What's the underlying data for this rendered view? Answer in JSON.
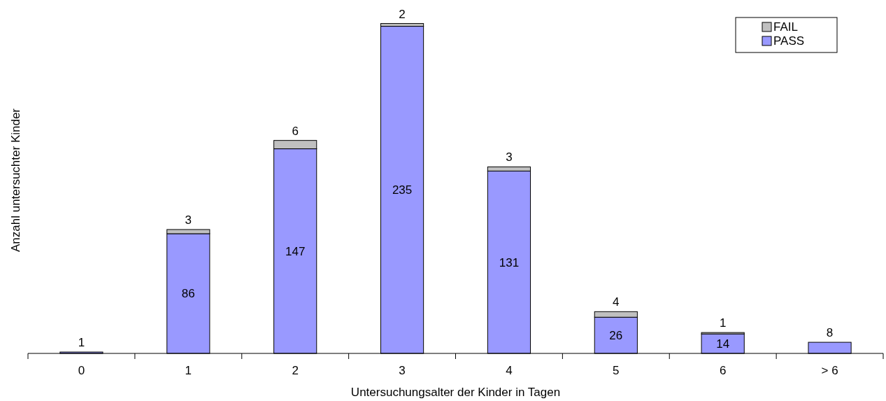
{
  "chart_data": {
    "type": "bar",
    "stacked": true,
    "xlabel": "Untersuchungsalter der Kinder in Tagen",
    "ylabel": "Anzahl untersuchter Kinder",
    "categories": [
      "0",
      "1",
      "2",
      "3",
      "4",
      "5",
      "6",
      "> 6"
    ],
    "series": [
      {
        "name": "PASS",
        "color": "#9999ff",
        "values": [
          1,
          86,
          147,
          235,
          131,
          26,
          14,
          8
        ],
        "value_labels": [
          "1",
          "86",
          "147",
          "235",
          "131",
          "26",
          "14",
          "8"
        ]
      },
      {
        "name": "FAIL",
        "color": "#c0c0c0",
        "values": [
          0,
          3,
          6,
          2,
          3,
          4,
          1,
          0
        ],
        "value_labels": [
          null,
          "3",
          "6",
          "2",
          "3",
          "4",
          "1",
          null
        ]
      }
    ],
    "tick_labels": "x",
    "legend": "top right"
  }
}
